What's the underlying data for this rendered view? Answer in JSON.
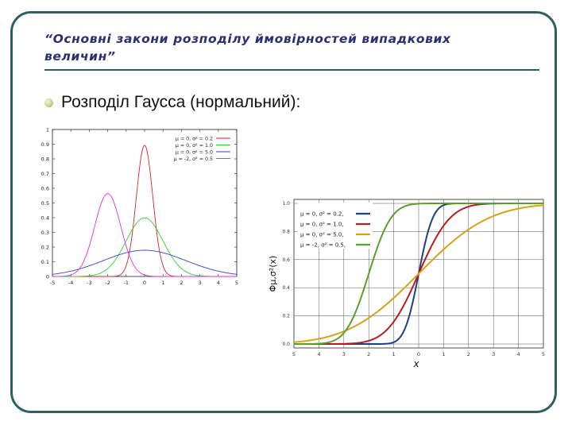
{
  "slide": {
    "title": "“Основні закони розподілу ймовірностей випадкових величин”",
    "bullet": "Розподіл Гаусса (нормальний):"
  },
  "chart_data": [
    {
      "type": "line",
      "function": "pdf",
      "xlim": [
        -5,
        5
      ],
      "ylim": [
        0,
        1
      ],
      "x_ticks": [
        "-5",
        "-4",
        "-3",
        "-2",
        "-1",
        "0",
        "1",
        "2",
        "3",
        "4",
        "5"
      ],
      "y_ticks": [
        "0",
        "0.1",
        "0.2",
        "0.3",
        "0.4",
        "0.5",
        "0.6",
        "0.7",
        "0.8",
        "0.9",
        "1"
      ],
      "grid": false,
      "legend_position": "top-right",
      "series": [
        {
          "name": "μ = 0, σ² = 0.2",
          "mu": 0,
          "var": 0.2,
          "color": "#d62424"
        },
        {
          "name": "μ = 0, σ² = 1.0",
          "mu": 0,
          "var": 1.0,
          "color": "#33cc33"
        },
        {
          "name": "μ = 0, σ² = 5.0",
          "mu": 0,
          "var": 5.0,
          "color": "#3344cc"
        },
        {
          "name": "μ = -2, σ² = 0.5",
          "mu": -2,
          "var": 0.5,
          "color": "#e030d0"
        }
      ]
    },
    {
      "type": "line",
      "function": "cdf",
      "xlim": [
        -5,
        5
      ],
      "ylim": [
        0,
        1
      ],
      "x_ticks": [
        "5",
        "4",
        "3",
        "2",
        "1",
        "0",
        "1",
        "2",
        "3",
        "4",
        "5"
      ],
      "y_ticks": [
        "0.0",
        "0.2",
        "0.4",
        "0.6",
        "0.8",
        "1.0"
      ],
      "xlabel": "x",
      "ylabel": "Φμ,σ²(x)",
      "grid": true,
      "legend_position": "top-left",
      "series": [
        {
          "name": "μ = 0, σ² = 0.2,",
          "mu": 0,
          "var": 0.2,
          "color": "#1f3f85"
        },
        {
          "name": "μ = 0, σ² = 1.0,",
          "mu": 0,
          "var": 1.0,
          "color": "#b81c1c"
        },
        {
          "name": "μ = 0, σ² = 5.0,",
          "mu": 0,
          "var": 5.0,
          "color": "#d9a01a"
        },
        {
          "name": "μ = -2, σ² = 0.5,",
          "mu": -2,
          "var": 0.5,
          "color": "#5c9e2a"
        }
      ]
    }
  ]
}
